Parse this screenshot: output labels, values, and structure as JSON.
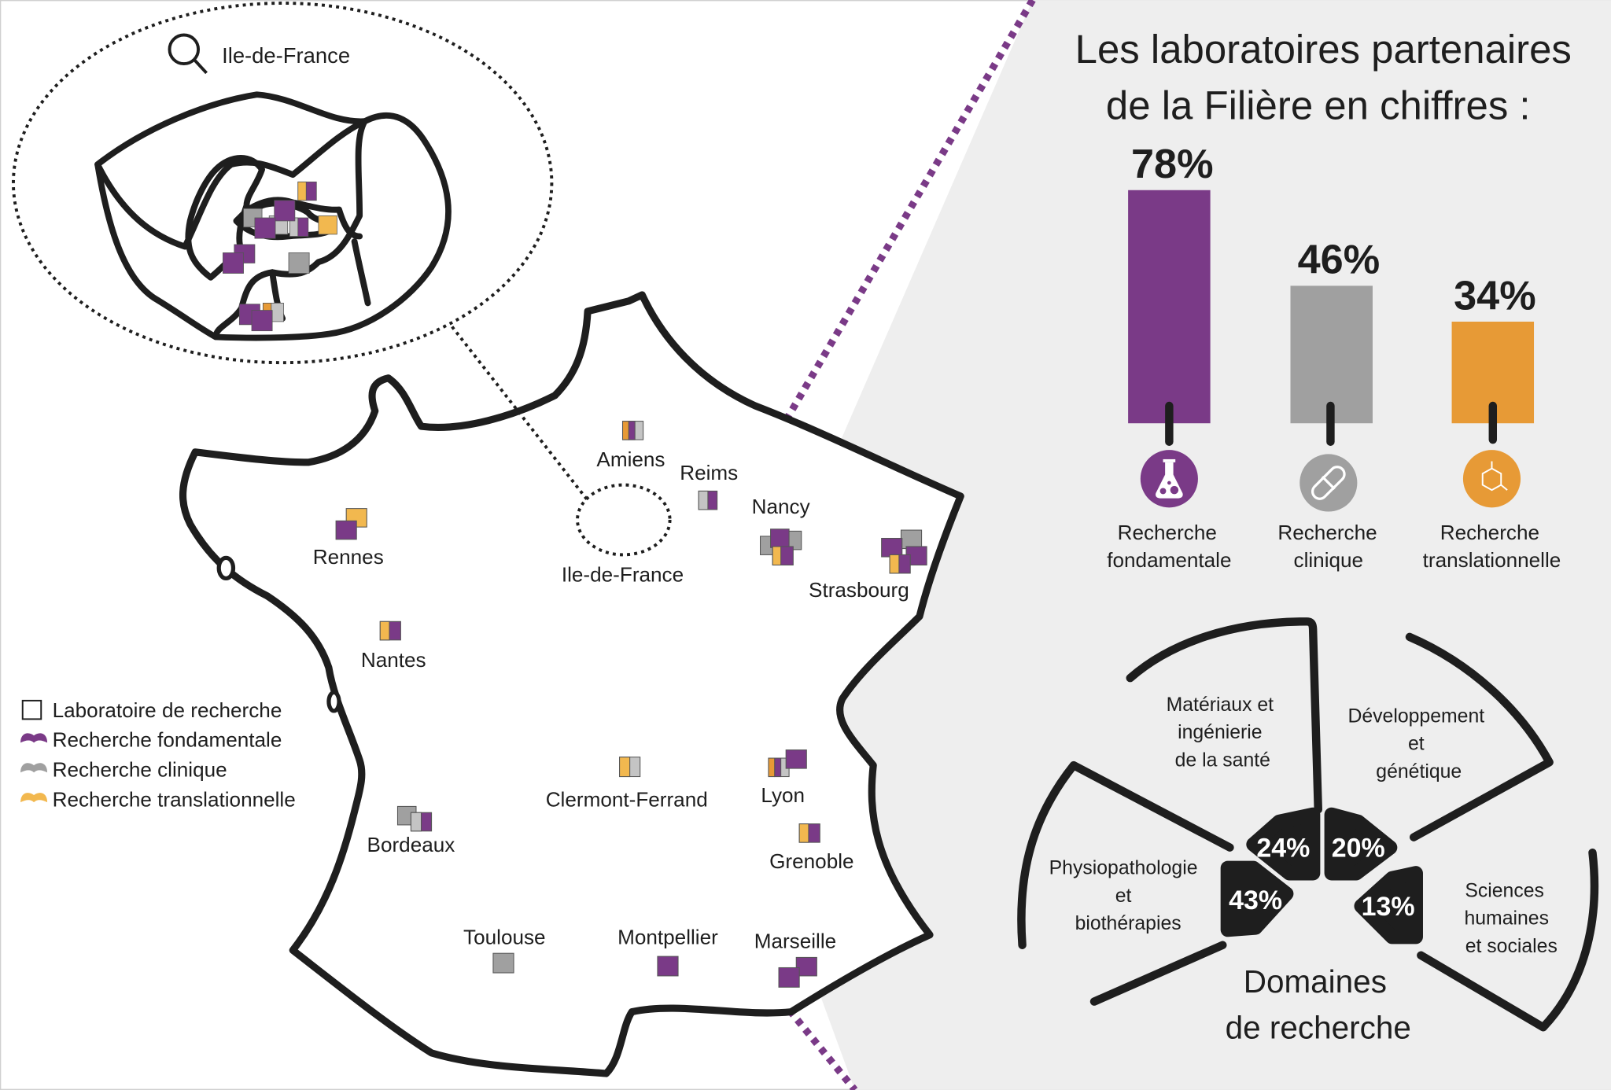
{
  "colors": {
    "fondamentale": "#7a3a87",
    "clinique": "#a0a0a0",
    "clinique_light": "#c4c4c4",
    "translationnelle": "#e79a36",
    "translationnelle_light": "#f2b84f",
    "divider": "#7a3a87",
    "panel_bg": "#eeeeee",
    "ink": "#1e1e1e"
  },
  "inset": {
    "label": "Ile-de-France",
    "icon": "magnifier-icon"
  },
  "map": {
    "cities": [
      {
        "name": "Amiens"
      },
      {
        "name": "Reims"
      },
      {
        "name": "Nancy"
      },
      {
        "name": "Strasbourg"
      },
      {
        "name": "Rennes"
      },
      {
        "name": "Ile-de-France"
      },
      {
        "name": "Nantes"
      },
      {
        "name": "Clermont-Ferrand"
      },
      {
        "name": "Lyon"
      },
      {
        "name": "Grenoble"
      },
      {
        "name": "Bordeaux"
      },
      {
        "name": "Toulouse"
      },
      {
        "name": "Montpellier"
      },
      {
        "name": "Marseille"
      }
    ]
  },
  "legend": {
    "items": [
      {
        "label": "Laboratoire de recherche",
        "icon": "square-outline-icon"
      },
      {
        "label": "Recherche fondamentale",
        "icon": "purple-blob-icon"
      },
      {
        "label": "Recherche clinique",
        "icon": "gray-blob-icon"
      },
      {
        "label": "Recherche translationnelle",
        "icon": "orange-blob-icon"
      }
    ]
  },
  "panel": {
    "title_line1": "Les laboratoires partenaires",
    "title_line2": "de la Filière en chiffres :"
  },
  "chart_data": [
    {
      "type": "bar",
      "categories": [
        "Recherche fondamentale",
        "Recherche clinique",
        "Recherche translationnelle"
      ],
      "values": [
        78,
        46,
        34
      ],
      "unit": "%",
      "bars": [
        {
          "line1": "Recherche",
          "line2": "fondamentale",
          "value": 78,
          "value_label": "78%",
          "color": "#7a3a87",
          "icon": "flask-icon"
        },
        {
          "line1": "Recherche",
          "line2": "clinique",
          "value": 46,
          "value_label": "46%",
          "color": "#a0a0a0",
          "icon": "pill-icon"
        },
        {
          "line1": "Recherche",
          "line2": "translationnelle",
          "value": 34,
          "value_label": "34%",
          "color": "#e79a36",
          "icon": "molecule-icon"
        }
      ],
      "title": "Les laboratoires partenaires de la Filière en chiffres :",
      "ylim": [
        0,
        100
      ]
    },
    {
      "type": "pie",
      "title_line1": "Domaines",
      "title_line2": "de recherche",
      "categories": [
        "Matériaux et ingénierie de la santé",
        "Développement et génétique",
        "Physiopathologie et biothérapies",
        "Sciences humaines et sociales"
      ],
      "values": [
        24,
        20,
        43,
        13
      ],
      "segments": [
        {
          "lines": [
            "Matériaux et",
            "ingénierie",
            "de la santé"
          ],
          "value": 24,
          "value_label": "24%"
        },
        {
          "lines": [
            "Développement",
            "et",
            "génétique"
          ],
          "value": 20,
          "value_label": "20%"
        },
        {
          "lines": [
            "Physiopathologie",
            "et",
            "biothérapies"
          ],
          "value": 43,
          "value_label": "43%"
        },
        {
          "lines": [
            "Sciences",
            "humaines",
            "et sociales"
          ],
          "value": 13,
          "value_label": "13%"
        }
      ]
    }
  ]
}
